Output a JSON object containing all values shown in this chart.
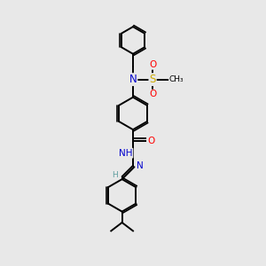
{
  "bg_color": "#e8e8e8",
  "atom_colors": {
    "C": "#000000",
    "N": "#0000cd",
    "O": "#ff0000",
    "S": "#ccaa00",
    "H": "#5f9ea0"
  },
  "bond_color": "#000000",
  "bond_width": 1.4,
  "fig_size": [
    3.0,
    3.0
  ],
  "dpi": 100
}
